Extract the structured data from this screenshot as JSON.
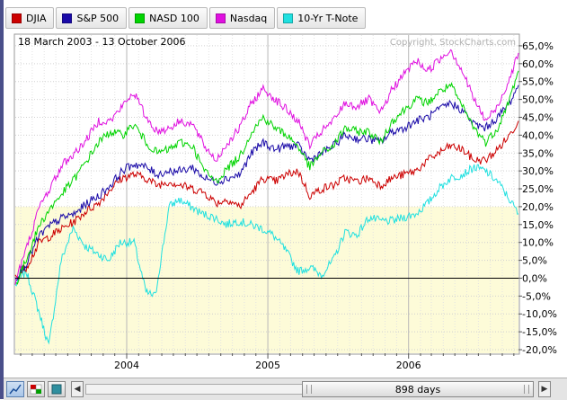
{
  "legend": [
    {
      "label": "DJIA",
      "color": "#cc0000"
    },
    {
      "label": "S&P 500",
      "color": "#1a0aa8"
    },
    {
      "label": "NASD 100",
      "color": "#00d400"
    },
    {
      "label": "Nasdaq",
      "color": "#e010e0"
    },
    {
      "label": "10-Yr T-Note",
      "color": "#20e0e0"
    }
  ],
  "date_range": "18 March 2003 - 13 October 2006",
  "copyright": "Copyright, StockCharts.com",
  "toolbar": {
    "days_label": "898 days"
  },
  "chart_data": {
    "type": "line",
    "x_ticks": [
      "2004",
      "2005",
      "2006"
    ],
    "y_ticks": [
      "65,0%",
      "60,0%",
      "55,0%",
      "50,0%",
      "45,0%",
      "40,0%",
      "35,0%",
      "30,0%",
      "25,0%",
      "20,0%",
      "15,0%",
      "10,0%",
      "5,0%",
      "0,0%",
      "-5,0%",
      "-10,0%",
      "-15,0%",
      "-20,0%"
    ],
    "ylim": [
      -21,
      68
    ],
    "x_unit_range": [
      "2003-03-18",
      "2006-10-13"
    ],
    "series": [
      {
        "name": "10-Yr T-Note",
        "color": "#20e0e0",
        "x": [
          "2003-03-18",
          "2003-04-15",
          "2003-05-20",
          "2003-06-13",
          "2003-07-15",
          "2003-08-15",
          "2003-09-15",
          "2003-10-15",
          "2003-11-15",
          "2003-12-15",
          "2004-01-20",
          "2004-02-20",
          "2004-03-15",
          "2004-04-20",
          "2004-05-15",
          "2004-06-15",
          "2004-07-15",
          "2004-08-15",
          "2004-09-15",
          "2004-10-15",
          "2004-11-15",
          "2004-12-15",
          "2005-01-15",
          "2005-02-15",
          "2005-03-20",
          "2005-04-20",
          "2005-05-20",
          "2005-06-20",
          "2005-07-20",
          "2005-08-20",
          "2005-09-20",
          "2005-10-20",
          "2005-11-20",
          "2005-12-20",
          "2006-01-20",
          "2006-02-20",
          "2006-03-20",
          "2006-04-20",
          "2006-05-20",
          "2006-06-20",
          "2006-07-20",
          "2006-08-20",
          "2006-09-20",
          "2006-10-13"
        ],
        "values": [
          -2,
          2,
          -10,
          -19,
          5,
          14,
          9,
          7,
          5,
          10,
          10,
          -4,
          -5,
          20,
          22,
          20,
          18,
          17,
          15,
          16,
          15,
          14,
          12,
          8,
          2,
          3,
          1,
          5,
          13,
          12,
          17,
          16,
          16,
          17,
          18,
          21,
          25,
          28,
          29,
          31,
          30,
          27,
          22,
          18
        ]
      },
      {
        "name": "DJIA",
        "color": "#cc0000",
        "x": [
          "2003-03-18",
          "2003-04-15",
          "2003-05-20",
          "2003-06-20",
          "2003-07-20",
          "2003-08-20",
          "2003-09-20",
          "2003-10-20",
          "2003-11-20",
          "2003-12-20",
          "2004-01-20",
          "2004-02-20",
          "2004-03-20",
          "2004-04-20",
          "2004-05-20",
          "2004-06-20",
          "2004-07-20",
          "2004-08-20",
          "2004-09-20",
          "2004-10-20",
          "2004-11-20",
          "2004-12-20",
          "2005-01-20",
          "2005-02-20",
          "2005-03-20",
          "2005-04-20",
          "2005-05-20",
          "2005-06-20",
          "2005-07-20",
          "2005-08-20",
          "2005-09-20",
          "2005-10-20",
          "2005-11-20",
          "2005-12-20",
          "2006-01-20",
          "2006-02-20",
          "2006-03-20",
          "2006-04-20",
          "2006-05-20",
          "2006-06-20",
          "2006-07-20",
          "2006-08-20",
          "2006-09-20",
          "2006-10-13"
        ],
        "values": [
          0,
          3,
          10,
          12,
          14,
          16,
          19,
          21,
          25,
          28,
          29,
          28,
          26,
          27,
          26,
          25,
          24,
          21,
          22,
          20,
          24,
          28,
          27,
          29,
          30,
          23,
          25,
          26,
          28,
          27,
          28,
          26,
          28,
          29,
          30,
          33,
          35,
          37,
          36,
          33,
          33,
          36,
          40,
          44
        ]
      },
      {
        "name": "S&P 500",
        "color": "#1a0aa8",
        "x": [
          "2003-03-18",
          "2003-04-15",
          "2003-05-20",
          "2003-06-20",
          "2003-07-20",
          "2003-08-20",
          "2003-09-20",
          "2003-10-20",
          "2003-11-20",
          "2003-12-20",
          "2004-01-20",
          "2004-02-20",
          "2004-03-20",
          "2004-04-20",
          "2004-05-20",
          "2004-06-20",
          "2004-07-20",
          "2004-08-20",
          "2004-09-20",
          "2004-10-20",
          "2004-11-20",
          "2004-12-20",
          "2005-01-20",
          "2005-02-20",
          "2005-03-20",
          "2005-04-20",
          "2005-05-20",
          "2005-06-20",
          "2005-07-20",
          "2005-08-20",
          "2005-09-20",
          "2005-10-20",
          "2005-11-20",
          "2005-12-20",
          "2006-01-20",
          "2006-02-20",
          "2006-03-20",
          "2006-04-20",
          "2006-05-20",
          "2006-06-20",
          "2006-07-20",
          "2006-08-20",
          "2006-09-20",
          "2006-10-13"
        ],
        "values": [
          0,
          4,
          12,
          15,
          17,
          18,
          21,
          23,
          26,
          30,
          32,
          31,
          29,
          30,
          30,
          31,
          28,
          27,
          28,
          29,
          35,
          38,
          36,
          37,
          37,
          33,
          35,
          37,
          40,
          39,
          39,
          38,
          41,
          42,
          44,
          45,
          47,
          49,
          47,
          43,
          42,
          45,
          49,
          54
        ]
      },
      {
        "name": "NASD 100",
        "color": "#00d400",
        "x": [
          "2003-03-18",
          "2003-04-15",
          "2003-05-20",
          "2003-06-20",
          "2003-07-20",
          "2003-08-20",
          "2003-09-20",
          "2003-10-20",
          "2003-11-20",
          "2003-12-20",
          "2004-01-20",
          "2004-02-20",
          "2004-03-20",
          "2004-04-20",
          "2004-05-20",
          "2004-06-20",
          "2004-07-20",
          "2004-08-20",
          "2004-09-20",
          "2004-10-20",
          "2004-11-20",
          "2004-12-20",
          "2005-01-20",
          "2005-02-20",
          "2005-03-20",
          "2005-04-20",
          "2005-05-20",
          "2005-06-20",
          "2005-07-20",
          "2005-08-20",
          "2005-09-20",
          "2005-10-20",
          "2005-11-20",
          "2005-12-20",
          "2006-01-20",
          "2006-02-20",
          "2006-03-20",
          "2006-04-20",
          "2006-05-20",
          "2006-06-20",
          "2006-07-20",
          "2006-08-20",
          "2006-09-20",
          "2006-10-13"
        ],
        "values": [
          -2,
          5,
          15,
          20,
          24,
          28,
          33,
          38,
          41,
          40,
          43,
          38,
          35,
          36,
          38,
          37,
          30,
          27,
          31,
          34,
          41,
          45,
          42,
          40,
          37,
          31,
          35,
          37,
          42,
          41,
          41,
          38,
          44,
          47,
          50,
          49,
          52,
          54,
          48,
          42,
          38,
          42,
          50,
          58
        ]
      },
      {
        "name": "Nasdaq",
        "color": "#e010e0",
        "x": [
          "2003-03-18",
          "2003-04-15",
          "2003-05-20",
          "2003-06-20",
          "2003-07-20",
          "2003-08-20",
          "2003-09-20",
          "2003-10-20",
          "2003-11-20",
          "2003-12-20",
          "2004-01-20",
          "2004-02-20",
          "2004-03-20",
          "2004-04-20",
          "2004-05-20",
          "2004-06-20",
          "2004-07-20",
          "2004-08-20",
          "2004-09-20",
          "2004-10-20",
          "2004-11-20",
          "2004-12-20",
          "2005-01-20",
          "2005-02-20",
          "2005-03-20",
          "2005-04-20",
          "2005-05-20",
          "2005-06-20",
          "2005-07-20",
          "2005-08-20",
          "2005-09-20",
          "2005-10-20",
          "2005-11-20",
          "2005-12-20",
          "2006-01-20",
          "2006-02-20",
          "2006-03-20",
          "2006-04-20",
          "2006-05-20",
          "2006-06-20",
          "2006-07-20",
          "2006-08-20",
          "2006-09-20",
          "2006-10-13"
        ],
        "values": [
          -1,
          8,
          20,
          26,
          32,
          35,
          39,
          44,
          44,
          48,
          52,
          45,
          41,
          42,
          44,
          43,
          37,
          33,
          38,
          42,
          49,
          53,
          50,
          47,
          44,
          37,
          41,
          44,
          49,
          48,
          50,
          46,
          53,
          57,
          61,
          58,
          61,
          64,
          58,
          50,
          44,
          48,
          56,
          63
        ]
      }
    ]
  }
}
